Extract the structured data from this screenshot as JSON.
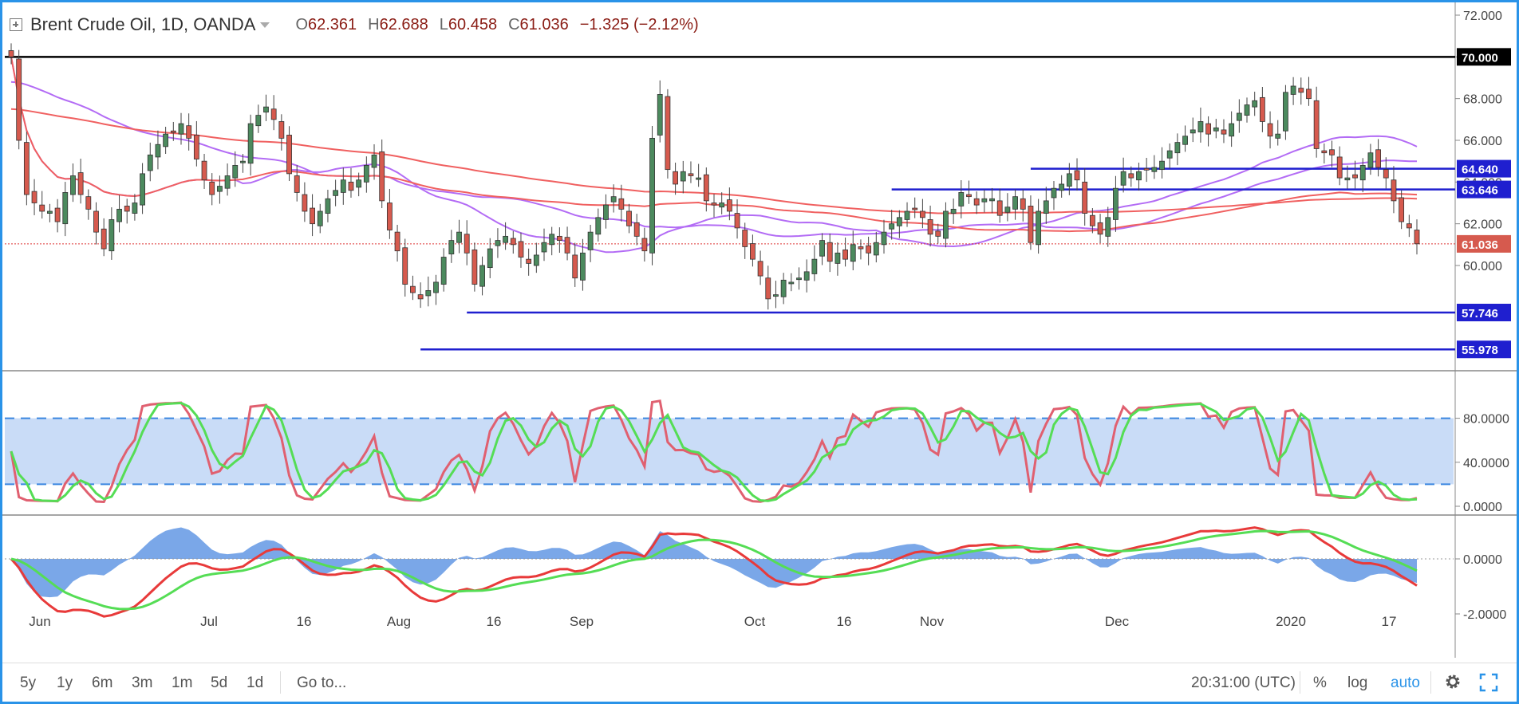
{
  "header": {
    "symbol": "Brent Crude Oil, 1D, OANDA",
    "open_label": "O",
    "open": "62.361",
    "high_label": "H",
    "high": "62.688",
    "low_label": "L",
    "low": "60.458",
    "close_label": "C",
    "close": "61.036",
    "change": "−1.325 (−2.12%)"
  },
  "toolbar": {
    "ranges": [
      "5y",
      "1y",
      "6m",
      "3m",
      "1m",
      "5d",
      "1d"
    ],
    "goto": "Go to...",
    "time": "20:31:00 (UTC)",
    "percent": "%",
    "log": "log",
    "auto": "auto"
  },
  "colors": {
    "bull": "#4c8a5e",
    "bear": "#d65a4e",
    "blue_line": "#1f1fcf",
    "ma_purple": "#b36cf5",
    "ma_red": "#f06060",
    "stoch_k": "#e06070",
    "stoch_d": "#55dd55",
    "stoch_band": "#c9dcf7",
    "hist": "#7aa7e8"
  },
  "chart_data": [
    {
      "type": "candlestick",
      "name": "price",
      "x_tick_labels": [
        "Jun",
        "Jul",
        "16",
        "Aug",
        "16",
        "Sep",
        "Oct",
        "16",
        "Nov",
        "Dec",
        "2020",
        "17"
      ],
      "y_ticks": [
        "72.000",
        "70.000",
        "68.000",
        "66.000",
        "64.000",
        "62.000",
        "60.000"
      ],
      "ylim": [
        55,
        72.3
      ],
      "levels": [
        {
          "label": "70.000",
          "value": 70.0,
          "color": "#000000",
          "start": "2019-05-23"
        },
        {
          "label": "64.640",
          "value": 64.64,
          "color": "#1f1fcf",
          "start": "2019-11-27"
        },
        {
          "label": "63.646",
          "value": 63.646,
          "color": "#1f1fcf",
          "start": "2019-11-01"
        },
        {
          "label": "57.746",
          "value": 57.746,
          "color": "#1f1fcf",
          "start": "2019-08-15"
        },
        {
          "label": "55.978",
          "value": 55.978,
          "color": "#1f1fcf",
          "start": "2019-08-07"
        }
      ],
      "last_price": {
        "label": "61.036",
        "value": 61.036
      },
      "close": [
        70.0,
        66.0,
        63.4,
        63.0,
        62.6,
        62.6,
        62.1,
        63.5,
        64.3,
        63.4,
        62.7,
        61.6,
        60.8,
        62.2,
        62.7,
        62.6,
        63.0,
        64.4,
        65.3,
        65.8,
        66.3,
        66.4,
        66.8,
        66.1,
        65.1,
        64.1,
        63.4,
        63.8,
        64.3,
        64.8,
        65.0,
        66.8,
        67.2,
        67.6,
        67.0,
        66.1,
        64.4,
        63.5,
        62.6,
        62.0,
        62.6,
        63.2,
        63.6,
        64.1,
        63.6,
        64.1,
        64.8,
        65.3,
        63.1,
        61.7,
        60.7,
        59.1,
        58.7,
        58.4,
        58.8,
        59.2,
        60.4,
        61.2,
        61.6,
        60.6,
        59.1,
        60.0,
        60.8,
        61.2,
        61.4,
        61.0,
        60.4,
        60.1,
        60.5,
        61.1,
        61.5,
        61.2,
        60.6,
        59.4,
        60.6,
        61.6,
        62.3,
        62.9,
        63.3,
        62.7,
        61.9,
        61.4,
        60.7,
        66.1,
        68.2,
        64.6,
        63.9,
        64.5,
        64.3,
        64.2,
        63.1,
        62.9,
        63.0,
        62.6,
        61.8,
        60.9,
        60.3,
        59.5,
        58.4,
        58.6,
        59.3,
        59.2,
        59.4,
        59.7,
        60.3,
        61.2,
        60.2,
        60.6,
        60.3,
        61.0,
        60.8,
        60.6,
        61.1,
        61.6,
        62.0,
        62.3,
        62.6,
        62.7,
        62.3,
        61.5,
        61.4,
        62.6,
        62.7,
        63.5,
        63.3,
        62.9,
        63.2,
        63.2,
        62.4,
        62.8,
        63.3,
        62.7,
        61.1,
        62.6,
        63.1,
        63.7,
        63.9,
        64.4,
        64.1,
        62.5,
        61.9,
        61.5,
        62.3,
        63.7,
        64.5,
        64.2,
        64.5,
        64.6,
        64.7,
        65.0,
        65.5,
        65.9,
        66.2,
        66.5,
        66.9,
        66.3,
        66.6,
        66.3,
        66.8,
        67.3,
        67.7,
        67.9,
        66.9,
        66.2,
        66.3,
        68.3,
        68.6,
        68.3,
        68.0,
        65.6,
        65.4,
        65.3,
        64.2,
        64.2,
        64.2,
        64.8,
        65.4,
        64.7,
        64.2,
        63.1,
        62.1,
        61.8,
        61.04
      ],
      "y_axis_units": "USD"
    },
    {
      "type": "line",
      "name": "stochastic",
      "y_ticks": [
        "80.0000",
        "40.0000",
        "0.0000"
      ],
      "ylim": [
        -5,
        105
      ],
      "band": [
        20,
        80
      ]
    },
    {
      "type": "line",
      "name": "macd",
      "y_ticks": [
        "0.0000",
        "-2.0000"
      ],
      "ylim": [
        -2.6,
        1.4
      ]
    }
  ]
}
